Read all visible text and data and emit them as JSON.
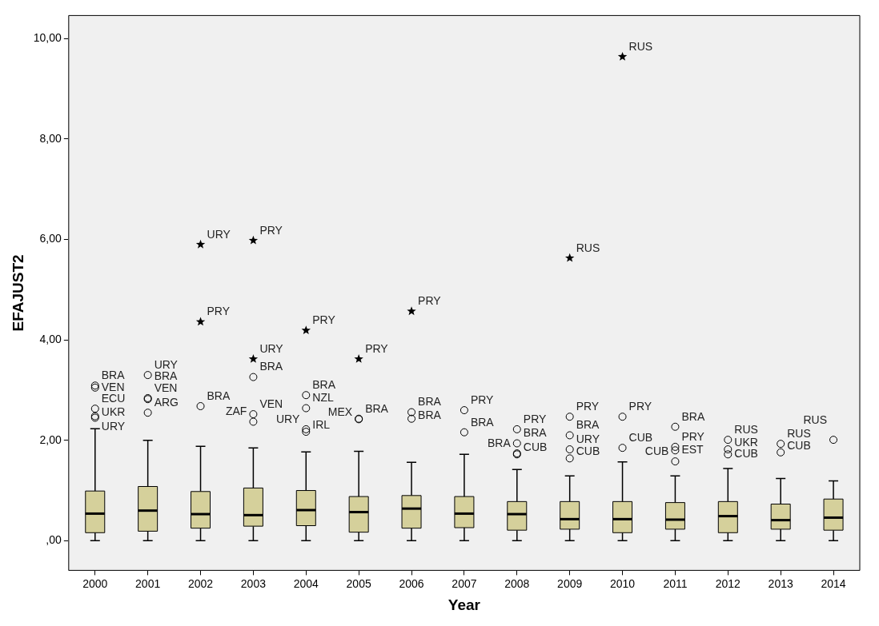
{
  "chart_data": {
    "type": "box",
    "xlabel": "Year",
    "ylabel": "EFAJUST2",
    "color": "#d5d09b",
    "grid": false,
    "legend": false,
    "categories": [
      "2000",
      "2001",
      "2002",
      "2003",
      "2004",
      "2005",
      "2006",
      "2007",
      "2008",
      "2009",
      "2010",
      "2011",
      "2012",
      "2013",
      "2014"
    ],
    "boxes": [
      {
        "low": 0,
        "q1": 0.16,
        "median": 0.54,
        "q3": 0.99,
        "high": 2.23
      },
      {
        "low": 0,
        "q1": 0.19,
        "median": 0.6,
        "q3": 1.08,
        "high": 2.0
      },
      {
        "low": 0,
        "q1": 0.25,
        "median": 0.53,
        "q3": 0.98,
        "high": 1.88
      },
      {
        "low": 0,
        "q1": 0.29,
        "median": 0.51,
        "q3": 1.05,
        "high": 1.85
      },
      {
        "low": 0,
        "q1": 0.3,
        "median": 0.61,
        "q3": 1.0,
        "high": 1.77
      },
      {
        "low": 0,
        "q1": 0.17,
        "median": 0.57,
        "q3": 0.88,
        "high": 1.78
      },
      {
        "low": 0,
        "q1": 0.25,
        "median": 0.64,
        "q3": 0.9,
        "high": 1.56
      },
      {
        "low": 0,
        "q1": 0.26,
        "median": 0.54,
        "q3": 0.88,
        "high": 1.72
      },
      {
        "low": 0,
        "q1": 0.21,
        "median": 0.53,
        "q3": 0.78,
        "high": 1.42
      },
      {
        "low": 0,
        "q1": 0.23,
        "median": 0.43,
        "q3": 0.78,
        "high": 1.29
      },
      {
        "low": 0,
        "q1": 0.16,
        "median": 0.43,
        "q3": 0.78,
        "high": 1.57
      },
      {
        "low": 0,
        "q1": 0.23,
        "median": 0.42,
        "q3": 0.76,
        "high": 1.29
      },
      {
        "low": 0,
        "q1": 0.16,
        "median": 0.49,
        "q3": 0.78,
        "high": 1.44
      },
      {
        "low": 0,
        "q1": 0.23,
        "median": 0.41,
        "q3": 0.73,
        "high": 1.24
      },
      {
        "low": 0,
        "q1": 0.21,
        "median": 0.46,
        "q3": 0.83,
        "high": 1.19
      }
    ],
    "series": [
      {
        "type": "scatter",
        "marker": "circle",
        "color": "#000000",
        "values": [
          3.09,
          3.3,
          2.68,
          3.26,
          2.9,
          2.43,
          2.56,
          2.6,
          2.22,
          2.47,
          2.47,
          2.27,
          2.01,
          1.93,
          2.01
        ],
        "value_labels": [
          "BRA",
          "URY",
          "BRA",
          "BRA",
          "BRA",
          "BRA",
          "BRA",
          "PRY",
          "PRY",
          "PRY",
          "PRY",
          "BRA",
          "RUS",
          "RUS",
          "RUS"
        ]
      },
      {
        "type": "scatter",
        "marker": "circle",
        "color": "#000000",
        "values": [
          3.05,
          2.84,
          null,
          2.52,
          2.64,
          2.42,
          2.43,
          2.16,
          1.94,
          2.1,
          1.85,
          1.87,
          1.82,
          1.76,
          null
        ],
        "value_labels": [
          "VEN",
          "VEN",
          null,
          "VEN",
          "NZL",
          "MEX",
          "BRA",
          "BRA",
          "BRA",
          "BRA",
          "CUB",
          "PRY",
          "UKR",
          "CUB",
          null
        ]
      },
      {
        "type": "scatter",
        "marker": "circle",
        "color": "#000000",
        "values": [
          2.63,
          2.82,
          null,
          2.37,
          2.22,
          null,
          null,
          null,
          1.74,
          1.82,
          null,
          1.8,
          1.72,
          null,
          null
        ],
        "value_labels": [
          "ECU",
          "BRA",
          null,
          "ZAF",
          "URY",
          null,
          null,
          null,
          "BRA",
          "URY",
          null,
          "EST",
          "CUB",
          null,
          null
        ]
      },
      {
        "type": "scatter",
        "marker": "circle",
        "color": "#000000",
        "values": [
          2.48,
          2.55,
          null,
          null,
          2.17,
          null,
          null,
          null,
          1.72,
          1.64,
          null,
          1.58,
          null,
          null,
          null
        ],
        "value_labels": [
          "UKR",
          "ARG",
          null,
          null,
          "IRL",
          null,
          null,
          null,
          "CUB",
          "CUB",
          null,
          "CUB",
          null,
          null,
          null
        ]
      },
      {
        "type": "scatter",
        "marker": "circle",
        "color": "#000000",
        "values": [
          2.45,
          null,
          null,
          null,
          null,
          null,
          null,
          null,
          null,
          null,
          null,
          null,
          null,
          null,
          null
        ],
        "value_labels": [
          "URY",
          null,
          null,
          null,
          null,
          null,
          null,
          null,
          null,
          null,
          null,
          null,
          null,
          null,
          null
        ]
      },
      {
        "type": "scatter",
        "marker": "star",
        "color": "#000000",
        "values": [
          null,
          null,
          5.9,
          5.98,
          4.19,
          3.62,
          4.57,
          null,
          null,
          5.63,
          9.64,
          null,
          null,
          null,
          null
        ],
        "value_labels": [
          null,
          null,
          "URY",
          "PRY",
          "PRY",
          "PRY",
          "PRY",
          null,
          null,
          "RUS",
          "RUS",
          null,
          null,
          null,
          null
        ]
      },
      {
        "type": "scatter",
        "marker": "star",
        "color": "#000000",
        "values": [
          null,
          null,
          4.36,
          3.62,
          null,
          null,
          null,
          null,
          null,
          null,
          null,
          null,
          null,
          null,
          null
        ],
        "value_labels": [
          null,
          null,
          "PRY",
          "URY",
          null,
          null,
          null,
          null,
          null,
          null,
          null,
          null,
          null,
          null,
          null
        ]
      }
    ],
    "ylim": [
      -0.59,
      10.46
    ],
    "yticks": [
      {
        "value": 0,
        "label": ",00"
      },
      {
        "value": 2,
        "label": "2,00"
      },
      {
        "value": 4,
        "label": "4,00"
      },
      {
        "value": 6,
        "label": "6,00"
      },
      {
        "value": 8,
        "label": "8,00"
      },
      {
        "value": 10,
        "label": "10,00"
      }
    ]
  }
}
